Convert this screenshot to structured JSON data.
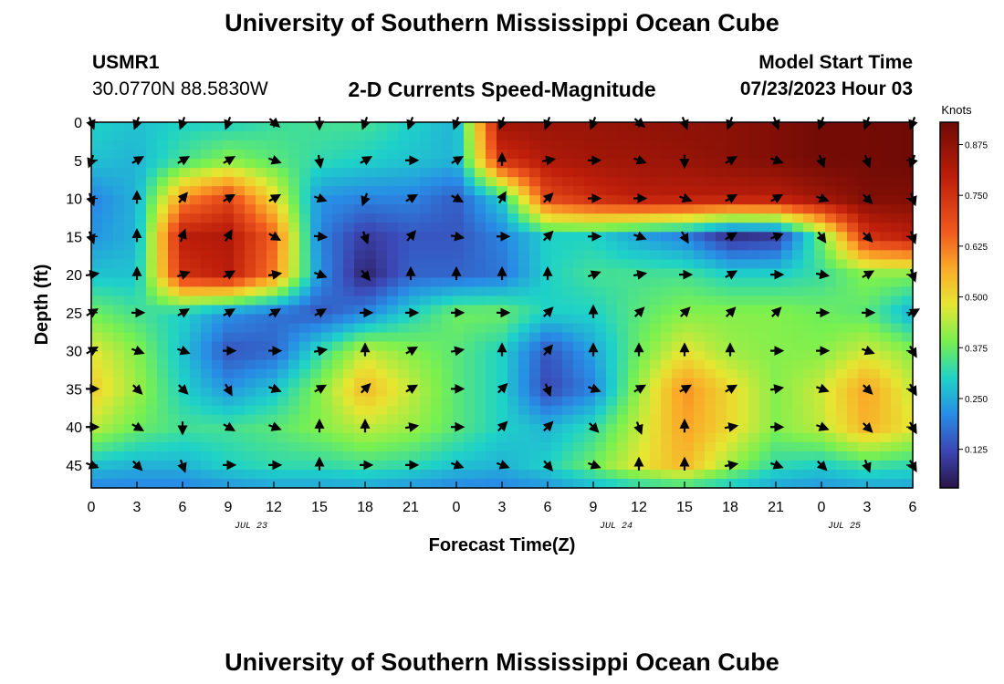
{
  "header": {
    "title": "University of Southern Mississippi Ocean Cube",
    "station_id": "USMR1",
    "coordinates": "30.0770N  88.5830W",
    "plot_title": "2-D Currents Speed-Magnitude",
    "model_start_label": "Model Start Time",
    "model_start_value": "07/23/2023 Hour 03",
    "footer_title": "University of Southern Mississippi Ocean Cube"
  },
  "chart_data": {
    "type": "heatmap",
    "title": "2-D Currents Speed-Magnitude",
    "xlabel": "Forecast Time(Z)",
    "ylabel": "Depth (ft)",
    "x_ticks": [
      "0",
      "3",
      "6",
      "9",
      "12",
      "15",
      "18",
      "21",
      "0",
      "3",
      "6",
      "9",
      "12",
      "15",
      "18",
      "21",
      "0",
      "3",
      "6"
    ],
    "date_labels": [
      {
        "label": "JUL 23",
        "after_tick": 3.5
      },
      {
        "label": "JUL 24",
        "after_tick": 11.5
      },
      {
        "label": "JUL 25",
        "after_tick": 16.5
      }
    ],
    "x_range_hours": [
      0,
      54
    ],
    "y_ticks": [
      0,
      5,
      10,
      15,
      20,
      25,
      30,
      35,
      40,
      45
    ],
    "y_range_ft": [
      0,
      48
    ],
    "colorbar": {
      "label": "Knots",
      "ticks": [
        "0.875",
        "0.750",
        "0.625",
        "0.500",
        "0.375",
        "0.250",
        "0.125"
      ],
      "tick_values": [
        0.875,
        0.75,
        0.625,
        0.5,
        0.375,
        0.25,
        0.125
      ],
      "range": [
        0.03,
        0.93
      ]
    },
    "speed_grid": {
      "x_hours": [
        0,
        3,
        6,
        9,
        12,
        15,
        18,
        21,
        24,
        27,
        30,
        33,
        36,
        39,
        42,
        45,
        48,
        51,
        54
      ],
      "depth_ft": [
        0,
        5,
        10,
        15,
        20,
        25,
        30,
        35,
        40,
        45,
        48
      ],
      "values": [
        [
          0.3,
          0.28,
          0.3,
          0.3,
          0.33,
          0.34,
          0.34,
          0.3,
          0.26,
          0.85,
          0.86,
          0.86,
          0.87,
          0.88,
          0.88,
          0.9,
          0.92,
          0.92,
          0.93
        ],
        [
          0.28,
          0.26,
          0.34,
          0.4,
          0.36,
          0.32,
          0.3,
          0.28,
          0.26,
          0.75,
          0.82,
          0.84,
          0.85,
          0.86,
          0.88,
          0.9,
          0.92,
          0.92,
          0.93
        ],
        [
          0.2,
          0.26,
          0.6,
          0.7,
          0.5,
          0.22,
          0.2,
          0.2,
          0.15,
          0.3,
          0.7,
          0.76,
          0.8,
          0.8,
          0.8,
          0.8,
          0.85,
          0.9,
          0.9
        ],
        [
          0.22,
          0.26,
          0.8,
          0.82,
          0.65,
          0.2,
          0.1,
          0.14,
          0.14,
          0.2,
          0.3,
          0.3,
          0.24,
          0.2,
          0.08,
          0.1,
          0.38,
          0.75,
          0.8
        ],
        [
          0.28,
          0.28,
          0.75,
          0.8,
          0.62,
          0.22,
          0.06,
          0.16,
          0.16,
          0.18,
          0.3,
          0.34,
          0.34,
          0.34,
          0.3,
          0.3,
          0.33,
          0.4,
          0.4
        ],
        [
          0.38,
          0.34,
          0.3,
          0.22,
          0.18,
          0.14,
          0.2,
          0.3,
          0.38,
          0.38,
          0.3,
          0.3,
          0.36,
          0.4,
          0.4,
          0.4,
          0.38,
          0.36,
          0.25
        ],
        [
          0.48,
          0.4,
          0.28,
          0.14,
          0.16,
          0.32,
          0.45,
          0.4,
          0.36,
          0.3,
          0.14,
          0.24,
          0.38,
          0.48,
          0.42,
          0.4,
          0.4,
          0.46,
          0.4
        ],
        [
          0.52,
          0.42,
          0.3,
          0.22,
          0.28,
          0.4,
          0.55,
          0.45,
          0.36,
          0.3,
          0.12,
          0.2,
          0.42,
          0.6,
          0.5,
          0.4,
          0.46,
          0.58,
          0.45
        ],
        [
          0.45,
          0.38,
          0.34,
          0.34,
          0.36,
          0.4,
          0.45,
          0.42,
          0.36,
          0.3,
          0.26,
          0.32,
          0.45,
          0.58,
          0.5,
          0.4,
          0.45,
          0.56,
          0.48
        ],
        [
          0.28,
          0.26,
          0.26,
          0.3,
          0.32,
          0.32,
          0.34,
          0.32,
          0.28,
          0.26,
          0.3,
          0.38,
          0.48,
          0.55,
          0.42,
          0.32,
          0.3,
          0.34,
          0.32
        ],
        [
          0.2,
          0.2,
          0.2,
          0.22,
          0.24,
          0.24,
          0.24,
          0.22,
          0.2,
          0.2,
          0.22,
          0.26,
          0.3,
          0.32,
          0.28,
          0.24,
          0.22,
          0.24,
          0.24
        ]
      ]
    },
    "vector_grid": {
      "x_hours": [
        0,
        3,
        6,
        9,
        12,
        15,
        18,
        21,
        24,
        27,
        30,
        33,
        36,
        39,
        42,
        45,
        48,
        51,
        54
      ],
      "depth_ft": [
        0,
        5,
        10,
        15,
        20,
        25,
        30,
        35,
        40,
        45
      ],
      "directions_deg": [
        [
          160,
          200,
          200,
          200,
          130,
          180,
          200,
          200,
          200,
          200,
          200,
          200,
          130,
          160,
          200,
          160,
          200,
          200,
          200
        ],
        [
          200,
          60,
          60,
          60,
          110,
          170,
          60,
          90,
          60,
          0,
          80,
          90,
          110,
          180,
          60,
          110,
          160,
          160,
          200
        ],
        [
          160,
          0,
          40,
          60,
          60,
          110,
          200,
          60,
          120,
          30,
          45,
          90,
          90,
          110,
          60,
          60,
          110,
          135,
          160
        ],
        [
          160,
          0,
          20,
          30,
          120,
          95,
          160,
          40,
          100,
          90,
          45,
          90,
          110,
          150,
          60,
          70,
          145,
          135,
          160
        ],
        [
          80,
          0,
          70,
          60,
          80,
          110,
          140,
          0,
          0,
          0,
          0,
          70,
          80,
          90,
          60,
          90,
          100,
          60,
          160
        ],
        [
          60,
          90,
          60,
          60,
          60,
          60,
          90,
          90,
          90,
          90,
          45,
          0,
          45,
          45,
          45,
          45,
          90,
          90,
          60
        ],
        [
          60,
          110,
          110,
          90,
          90,
          80,
          0,
          60,
          80,
          0,
          40,
          0,
          0,
          0,
          0,
          90,
          90,
          110,
          150
        ],
        [
          90,
          135,
          135,
          150,
          110,
          60,
          45,
          60,
          90,
          45,
          160,
          110,
          60,
          60,
          60,
          80,
          110,
          135,
          150
        ],
        [
          90,
          120,
          180,
          120,
          110,
          0,
          0,
          80,
          90,
          45,
          45,
          135,
          160,
          0,
          80,
          90,
          110,
          135,
          150
        ],
        [
          110,
          135,
          160,
          90,
          90,
          0,
          90,
          90,
          110,
          110,
          140,
          110,
          0,
          0,
          80,
          110,
          135,
          160,
          150
        ]
      ]
    }
  }
}
